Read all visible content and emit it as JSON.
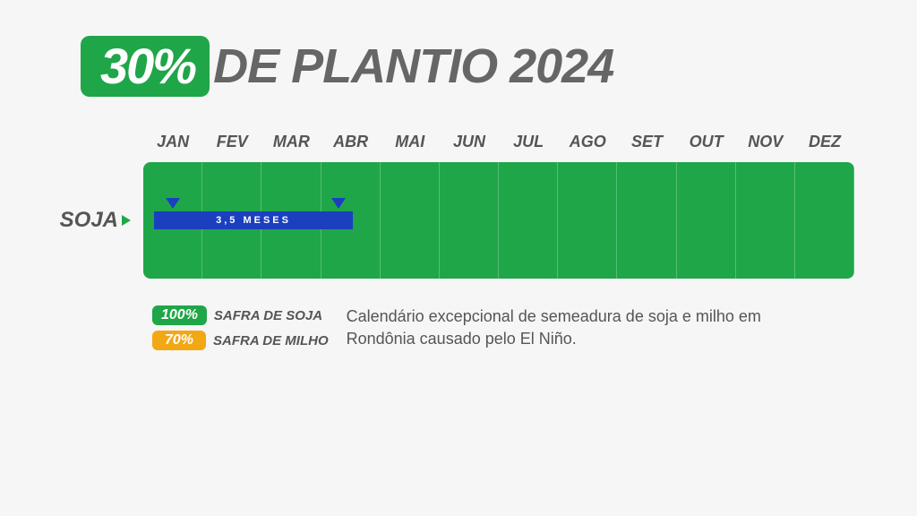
{
  "header": {
    "percent": "30%",
    "percent_bg": "#1fa648",
    "title": "DE PLANTIO 2024",
    "title_color": "#666666"
  },
  "months": [
    "JAN",
    "FEV",
    "MAR",
    "ABR",
    "MAI",
    "JUN",
    "JUL",
    "AGO",
    "SET",
    "OUT",
    "NOV",
    "DEZ"
  ],
  "crop": {
    "label": "SOJA",
    "arrow_color": "#1fa648"
  },
  "timeline": {
    "track_bg": "#1fa648",
    "bar": {
      "label": "3,5 MESES",
      "bg": "#1b3fbf",
      "start_pct": 1.5,
      "width_pct": 28.0
    },
    "markers": [
      {
        "pos_pct": 4.2,
        "color": "#1b3fbf"
      },
      {
        "pos_pct": 27.5,
        "color": "#1b3fbf"
      }
    ]
  },
  "legend": {
    "items": [
      {
        "pct": "100%",
        "bg": "#1fa648",
        "label": "SAFRA DE SOJA"
      },
      {
        "pct": "70%",
        "bg": "#f2a814",
        "label": "SAFRA DE MILHO"
      }
    ],
    "description": "Calendário excepcional de semeadura de soja e milho em Rondônia causado pelo El Niño."
  },
  "colors": {
    "background": "#f6f6f6"
  }
}
